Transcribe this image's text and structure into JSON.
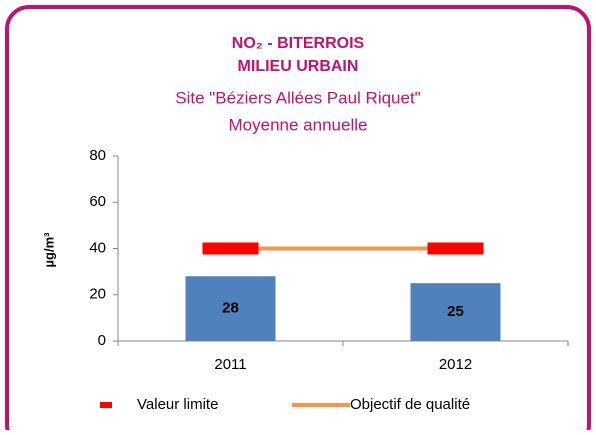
{
  "chart_data": {
    "type": "bar",
    "title": "NO₂ - BITERROIS",
    "subtitle": "MILIEU URBAIN",
    "notes": [
      "Site \"Béziers Allées Paul Riquet\"",
      "Moyenne annuelle"
    ],
    "ylabel": "µg/m³",
    "categories": [
      "2011",
      "2012"
    ],
    "values": [
      28,
      25
    ],
    "color": "#4f81bd",
    "series": [
      {
        "name": "Valeur limite",
        "color": "#ff0000",
        "style": "marker",
        "values": [
          40,
          40
        ]
      },
      {
        "name": "Objectif de qualité",
        "color": "#f79646",
        "style": "line",
        "values": [
          40,
          40
        ]
      }
    ],
    "ylim": [
      0,
      80
    ],
    "yticks": [
      0,
      20,
      40,
      60,
      80
    ],
    "legend": "bottom"
  }
}
